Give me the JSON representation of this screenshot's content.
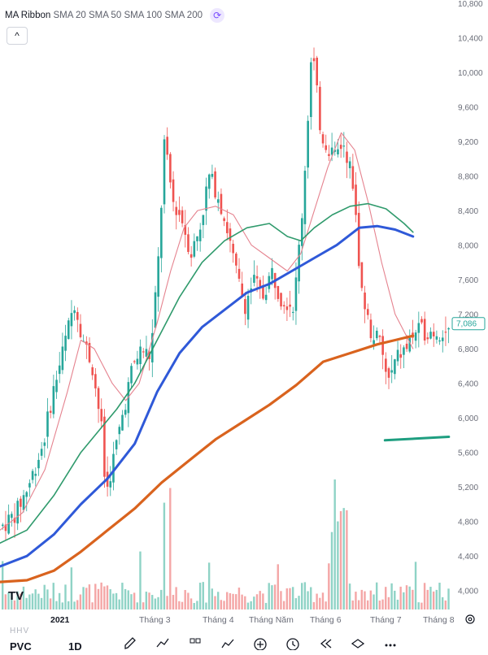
{
  "legend": {
    "indicator_name": "MA Ribbon",
    "items": [
      "SMA 20",
      "SMA 50",
      "SMA 100",
      "SMA 200"
    ],
    "refresh_icon": "refresh-icon",
    "collapse_icon": "chevron-up-icon"
  },
  "colors": {
    "up": "#26a69a",
    "down": "#ef5350",
    "sma20": "#e5838f",
    "sma50": "#2f9a6c",
    "sma100": "#2f59d8",
    "sma200": "#d9631e",
    "trendline": "#1e9e80",
    "vol_up": "#8fd3c6",
    "vol_down": "#f4a6a6"
  },
  "chart_data": {
    "type": "candlestick",
    "x_labels": [
      "2021",
      "Tháng 3",
      "Tháng 4",
      "Tháng Năm",
      "Tháng 6",
      "Tháng 7",
      "Tháng 8"
    ],
    "y_ticks": [
      4000,
      4400,
      4800,
      5200,
      5600,
      6000,
      6400,
      6800,
      7200,
      7600,
      8000,
      8400,
      8800,
      9200,
      9600,
      10000,
      10400,
      10800
    ],
    "y_tick_labels": [
      "4,000",
      "4,400",
      "4,800",
      "5,200",
      "5,600",
      "6,000",
      "6,400",
      "6,800",
      "7,200",
      "7,600",
      "8,000",
      "8,400",
      "8,800",
      "9,200",
      "9,600",
      "10,000",
      "10,400",
      "10,800"
    ],
    "ylim": [
      3800,
      10800
    ],
    "last_price": 7086,
    "last_price_label": "7,086",
    "trendline": [
      [
        0.785,
        5740
      ],
      [
        0.92,
        5780
      ]
    ],
    "ohlc_keypoints": [
      [
        0.0,
        4750
      ],
      [
        0.03,
        4900
      ],
      [
        0.06,
        5250
      ],
      [
        0.09,
        5700
      ],
      [
        0.11,
        6250
      ],
      [
        0.14,
        6900
      ],
      [
        0.16,
        7350
      ],
      [
        0.18,
        6900
      ],
      [
        0.2,
        6600
      ],
      [
        0.22,
        5900
      ],
      [
        0.23,
        5100
      ],
      [
        0.25,
        5600
      ],
      [
        0.27,
        6100
      ],
      [
        0.29,
        6600
      ],
      [
        0.31,
        6800
      ],
      [
        0.33,
        6700
      ],
      [
        0.35,
        8000
      ],
      [
        0.36,
        9200
      ],
      [
        0.38,
        8500
      ],
      [
        0.4,
        8300
      ],
      [
        0.42,
        7900
      ],
      [
        0.44,
        8200
      ],
      [
        0.46,
        8800
      ],
      [
        0.48,
        8600
      ],
      [
        0.5,
        8200
      ],
      [
        0.52,
        7700
      ],
      [
        0.54,
        7300
      ],
      [
        0.56,
        7600
      ],
      [
        0.58,
        7400
      ],
      [
        0.6,
        7700
      ],
      [
        0.62,
        7400
      ],
      [
        0.65,
        7300
      ],
      [
        0.67,
        8500
      ],
      [
        0.69,
        10300
      ],
      [
        0.71,
        9300
      ],
      [
        0.74,
        9000
      ],
      [
        0.76,
        9200
      ],
      [
        0.78,
        8800
      ],
      [
        0.8,
        7500
      ],
      [
        0.82,
        7000
      ],
      [
        0.84,
        6900
      ],
      [
        0.86,
        6400
      ],
      [
        0.88,
        6700
      ],
      [
        0.9,
        6800
      ],
      [
        0.92,
        7000
      ]
    ],
    "sma20": [
      [
        0.0,
        4700
      ],
      [
        0.05,
        4900
      ],
      [
        0.1,
        5400
      ],
      [
        0.15,
        6300
      ],
      [
        0.18,
        6900
      ],
      [
        0.21,
        6800
      ],
      [
        0.25,
        6400
      ],
      [
        0.28,
        6200
      ],
      [
        0.31,
        6400
      ],
      [
        0.35,
        7100
      ],
      [
        0.38,
        7700
      ],
      [
        0.41,
        8200
      ],
      [
        0.44,
        8400
      ],
      [
        0.48,
        8450
      ],
      [
        0.52,
        8350
      ],
      [
        0.56,
        8000
      ],
      [
        0.6,
        7850
      ],
      [
        0.64,
        7700
      ],
      [
        0.67,
        7900
      ],
      [
        0.7,
        8400
      ],
      [
        0.73,
        8900
      ],
      [
        0.76,
        9300
      ],
      [
        0.79,
        9100
      ],
      [
        0.82,
        8500
      ],
      [
        0.85,
        7800
      ],
      [
        0.88,
        7200
      ],
      [
        0.91,
        6900
      ],
      [
        0.92,
        6800
      ]
    ],
    "sma50": [
      [
        0.0,
        4550
      ],
      [
        0.06,
        4700
      ],
      [
        0.12,
        5100
      ],
      [
        0.18,
        5600
      ],
      [
        0.22,
        5850
      ],
      [
        0.26,
        6100
      ],
      [
        0.3,
        6400
      ],
      [
        0.35,
        6900
      ],
      [
        0.4,
        7400
      ],
      [
        0.45,
        7800
      ],
      [
        0.5,
        8050
      ],
      [
        0.55,
        8200
      ],
      [
        0.6,
        8250
      ],
      [
        0.64,
        8100
      ],
      [
        0.67,
        8050
      ],
      [
        0.7,
        8200
      ],
      [
        0.74,
        8350
      ],
      [
        0.78,
        8450
      ],
      [
        0.82,
        8480
      ],
      [
        0.86,
        8420
      ],
      [
        0.9,
        8250
      ],
      [
        0.92,
        8150
      ]
    ],
    "sma100": [
      [
        0.0,
        4280
      ],
      [
        0.06,
        4400
      ],
      [
        0.12,
        4650
      ],
      [
        0.18,
        5000
      ],
      [
        0.24,
        5300
      ],
      [
        0.3,
        5700
      ],
      [
        0.35,
        6300
      ],
      [
        0.4,
        6750
      ],
      [
        0.45,
        7050
      ],
      [
        0.5,
        7250
      ],
      [
        0.55,
        7450
      ],
      [
        0.6,
        7550
      ],
      [
        0.65,
        7700
      ],
      [
        0.7,
        7850
      ],
      [
        0.75,
        8000
      ],
      [
        0.8,
        8200
      ],
      [
        0.84,
        8220
      ],
      [
        0.88,
        8180
      ],
      [
        0.92,
        8100
      ]
    ],
    "sma200": [
      [
        0.0,
        4100
      ],
      [
        0.06,
        4120
      ],
      [
        0.12,
        4230
      ],
      [
        0.18,
        4450
      ],
      [
        0.24,
        4700
      ],
      [
        0.3,
        4950
      ],
      [
        0.36,
        5250
      ],
      [
        0.42,
        5500
      ],
      [
        0.48,
        5750
      ],
      [
        0.54,
        5950
      ],
      [
        0.6,
        6150
      ],
      [
        0.66,
        6380
      ],
      [
        0.72,
        6650
      ],
      [
        0.78,
        6750
      ],
      [
        0.84,
        6850
      ],
      [
        0.88,
        6900
      ],
      [
        0.92,
        6950
      ]
    ]
  },
  "toolbar": {
    "symbol": "PVC",
    "interval": "1D",
    "icons": [
      "pencil-icon",
      "trend-icon",
      "layout-icon",
      "indicators-icon",
      "add-icon",
      "alert-icon",
      "replay-icon",
      "layers-icon",
      "more-icon"
    ]
  },
  "watermark": "HHV",
  "settings_icon": "settings-icon"
}
